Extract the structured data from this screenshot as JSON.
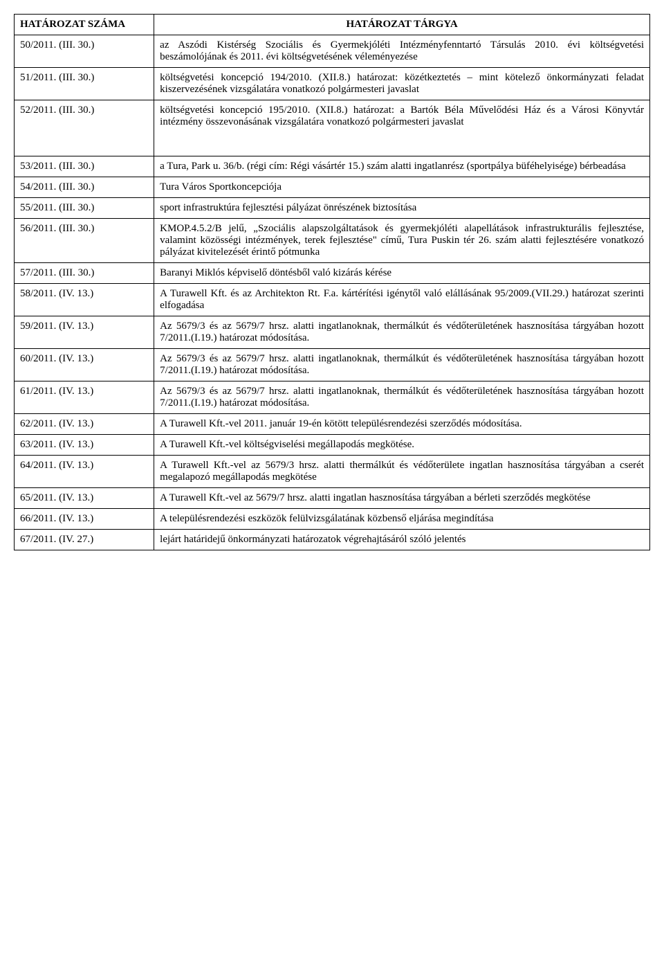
{
  "table": {
    "headers": {
      "col1": "HATÁROZAT SZÁMA",
      "col2": "HATÁROZAT TÁRGYA"
    },
    "rows": [
      {
        "num": "50/2011. (III. 30.)",
        "text": "az Aszódi Kistérség Szociális és Gyermekjóléti Intézményfenntartó Társulás 2010. évi költségvetési beszámolójának és 2011. évi költségvetésének véleményezése",
        "extraPad": false
      },
      {
        "num": "51/2011. (III. 30.)",
        "text": "költségvetési koncepció 194/2010. (XII.8.) határozat: közétkeztetés – mint kötelező önkormányzati feladat kiszervezésének vizsgálatára vonatkozó polgármesteri javaslat",
        "extraPad": false
      },
      {
        "num": "52/2011. (III. 30.)",
        "text": "költségvetési koncepció 195/2010. (XII.8.) határozat: a Bartók Béla Művelődési Ház és a Városi Könyvtár intézmény összevonásának vizsgálatára vonatkozó polgármesteri javaslat",
        "extraPad": true
      },
      {
        "num": "53/2011. (III. 30.)",
        "text": "a  Tura, Park u.  36/b. (régi cím: Régi vásártér 15.) szám alatti ingatlanrész (sportpálya büféhelyisége) bérbeadása",
        "extraPad": false
      },
      {
        "num": "54/2011. (III. 30.)",
        "text": "Tura Város Sportkoncepciója",
        "extraPad": false
      },
      {
        "num": "55/2011. (III. 30.)",
        "text": "sport infrastruktúra fejlesztési pályázat önrészének biztosítása",
        "extraPad": false
      },
      {
        "num": "56/2011. (III. 30.)",
        "text": "KMOP.4.5.2/B jelű, „Szociális alapszolgáltatások és gyermekjóléti alapellátások infrastrukturális fejlesztése, valamint közösségi intézmények, terek fejlesztése\" című, Tura Puskin tér 26. szám alatti fejlesztésére vonatkozó pályázat kivitelezését érintő pótmunka",
        "extraPad": false
      },
      {
        "num": "57/2011. (III. 30.)",
        "text": "Baranyi Miklós képviselő döntésből való kizárás kérése",
        "extraPad": false
      },
      {
        "num": "58/2011. (IV. 13.)",
        "text": "A Turawell Kft. és az Architekton Rt. F.a. kártérítési igénytől való elállásának 95/2009.(VII.29.) határozat szerinti elfogadása",
        "extraPad": false
      },
      {
        "num": "59/2011. (IV. 13.)",
        "text": "Az 5679/3 és az 5679/7 hrsz. alatti ingatlanoknak, thermálkút és védőterületének hasznosítása tárgyában hozott 7/2011.(I.19.) határozat módosítása.",
        "extraPad": false
      },
      {
        "num": "60/2011. (IV. 13.)",
        "text": "Az 5679/3 és az 5679/7 hrsz. alatti ingatlanoknak, thermálkút és védőterületének hasznosítása tárgyában hozott 7/2011.(I.19.) határozat módosítása.",
        "extraPad": false
      },
      {
        "num": "61/2011. (IV. 13.)",
        "text": "Az 5679/3 és az 5679/7 hrsz. alatti ingatlanoknak, thermálkút és védőterületének hasznosítása tárgyában hozott 7/2011.(I.19.) határozat módosítása.",
        "extraPad": false
      },
      {
        "num": "62/2011. (IV. 13.)",
        "text": "A Turawell Kft.-vel 2011. január 19-én kötött településrendezési szerződés módosítása.",
        "extraPad": false
      },
      {
        "num": "63/2011. (IV. 13.)",
        "text": "A Turawell Kft.-vel költségviselési megállapodás megkötése.",
        "extraPad": false
      },
      {
        "num": "64/2011. (IV. 13.)",
        "text": "A Turawell Kft.-vel az 5679/3 hrsz. alatti thermálkút és védőterülete ingatlan  hasznosítása tárgyában a cserét megalapozó megállapodás megkötése",
        "extraPad": false
      },
      {
        "num": "65/2011. (IV. 13.)",
        "text": "A Turawell Kft.-vel az 5679/7 hrsz. alatti ingatlan  hasznosítása tárgyában a bérleti szerződés megkötése",
        "extraPad": false
      },
      {
        "num": "66/2011. (IV. 13.)",
        "text": "A településrendezési eszközök felülvizsgálatának közbenső eljárása megindítása",
        "extraPad": false
      },
      {
        "num": "67/2011. (IV. 27.)",
        "text": "lejárt határidejű önkormányzati határozatok végrehajtásáról szóló jelentés",
        "extraPad": false
      }
    ]
  }
}
